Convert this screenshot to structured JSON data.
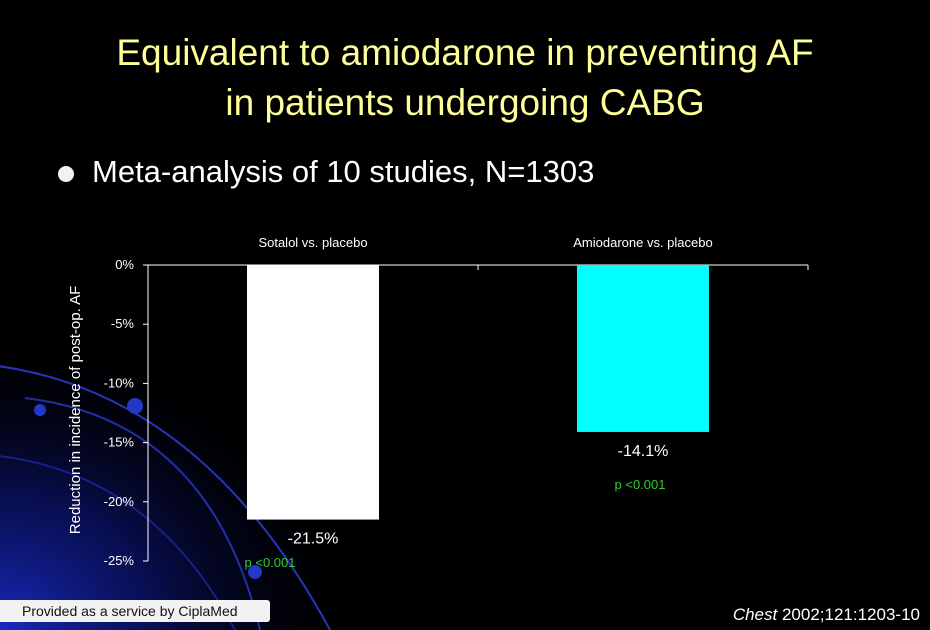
{
  "slide": {
    "title_line1": "Equivalent to amiodarone in preventing AF",
    "title_line2": "in patients undergoing CABG",
    "bullet": "Meta-analysis of 10 studies, N=1303",
    "footer_service": "Provided as a service by CiplaMed",
    "citation_journal": "Chest",
    "citation_ref": " 2002;121:1203-10"
  },
  "colors": {
    "background": "#000000",
    "title": "#ffff99",
    "sotalol_bar": "#ffffff",
    "amiodarone_bar": "#00ffff",
    "p_value": "#33cc33"
  },
  "chart_data": {
    "type": "bar",
    "categories": [
      "Sotalol vs. placebo",
      "Amiodarone vs. placebo"
    ],
    "values": [
      -21.5,
      -14.1
    ],
    "data_labels": [
      "-21.5%",
      "-14.1%"
    ],
    "p_values": [
      "p <0.001",
      "p <0.001"
    ],
    "bar_colors": [
      "#ffffff",
      "#00ffff"
    ],
    "ylabel": "Reduction in incidence of post-op. AF",
    "xlabel": "",
    "ylim": [
      -25,
      0
    ],
    "y_ticks": [
      0,
      -5,
      -10,
      -15,
      -20,
      -25
    ],
    "y_tick_labels": [
      "0%",
      "-5%",
      "-10%",
      "-15%",
      "-20%",
      "-25%"
    ],
    "category_labels_position": "top",
    "grid": false,
    "legend": "none"
  }
}
